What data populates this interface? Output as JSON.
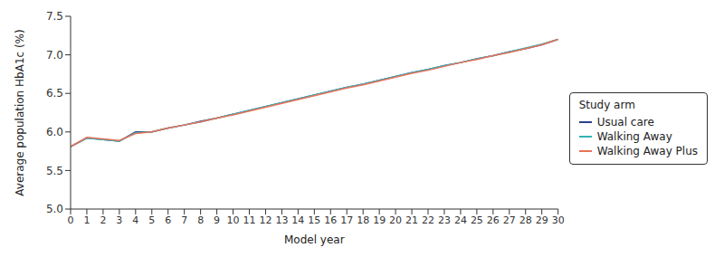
{
  "chart_data": {
    "type": "line",
    "x_label": "Model year",
    "y_label": "Average population HbA1c (%)",
    "legend_title": "Study arm",
    "legend": "right",
    "grid": false,
    "xlim": [
      0,
      30
    ],
    "xticks": [
      0,
      1,
      2,
      3,
      4,
      5,
      6,
      7,
      8,
      9,
      10,
      11,
      12,
      13,
      14,
      15,
      16,
      17,
      18,
      19,
      20,
      21,
      22,
      23,
      24,
      25,
      26,
      27,
      28,
      29,
      30
    ],
    "ylim": [
      5.0,
      7.5
    ],
    "yticks": [
      {
        "value": 5.0,
        "label": "5.0"
      },
      5.5,
      {
        "value": 6.0,
        "label": "6.0"
      },
      6.5,
      {
        "value": 7.0,
        "label": "7.0"
      },
      7.5
    ],
    "x": [
      0,
      1,
      2,
      3,
      4,
      5,
      6,
      7,
      8,
      9,
      10,
      11,
      12,
      13,
      14,
      15,
      16,
      17,
      18,
      19,
      20,
      21,
      22,
      23,
      24,
      25,
      26,
      27,
      28,
      29,
      30
    ],
    "series": [
      {
        "name": "Usual care",
        "color": "#2e3f8f",
        "values": [
          5.81,
          5.92,
          5.9,
          5.88,
          6.0,
          6.0,
          6.05,
          6.09,
          6.14,
          6.18,
          6.23,
          6.28,
          6.33,
          6.38,
          6.43,
          6.48,
          6.53,
          6.58,
          6.62,
          6.67,
          6.72,
          6.77,
          6.81,
          6.86,
          6.9,
          6.95,
          6.99,
          7.04,
          7.08,
          7.13,
          7.2
        ]
      },
      {
        "name": "Walking Away",
        "color": "#33b3b3",
        "values": [
          5.81,
          5.92,
          5.9,
          5.88,
          5.99,
          6.0,
          6.05,
          6.09,
          6.13,
          6.18,
          6.23,
          6.28,
          6.33,
          6.38,
          6.43,
          6.48,
          6.53,
          6.58,
          6.62,
          6.67,
          6.72,
          6.77,
          6.81,
          6.86,
          6.9,
          6.95,
          6.99,
          7.04,
          7.09,
          7.14,
          7.2
        ]
      },
      {
        "name": "Walking Away Plus",
        "color": "#e8735a",
        "values": [
          5.81,
          5.93,
          5.91,
          5.89,
          5.98,
          6.0,
          6.05,
          6.09,
          6.13,
          6.18,
          6.22,
          6.27,
          6.32,
          6.37,
          6.42,
          6.47,
          6.52,
          6.57,
          6.61,
          6.66,
          6.71,
          6.76,
          6.8,
          6.85,
          6.9,
          6.94,
          6.99,
          7.03,
          7.08,
          7.13,
          7.2
        ]
      }
    ]
  }
}
